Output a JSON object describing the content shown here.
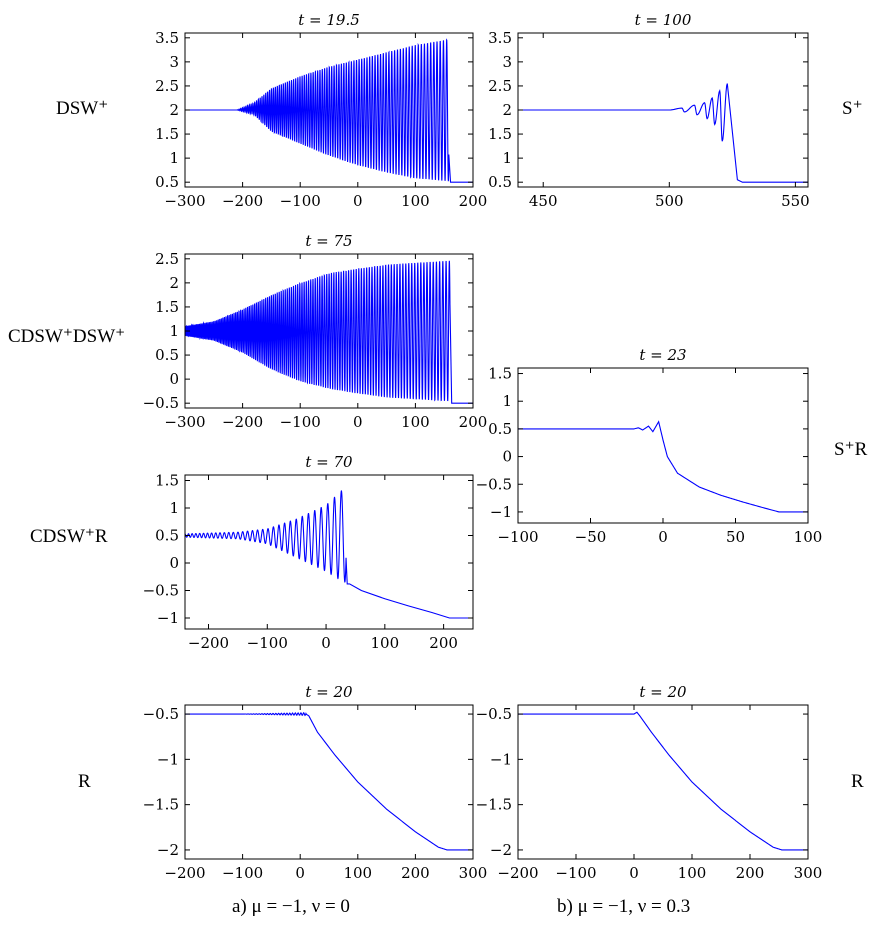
{
  "row_labels": {
    "dsw_plus": "DSW⁺",
    "s_plus": "S⁺",
    "cdsw_dsw": "CDSW⁺DSW⁺",
    "s_plus_r": "S⁺R",
    "cdsw_r": "CDSW⁺R",
    "r_left": "R",
    "r_right": "R"
  },
  "captions": {
    "left": "a) μ = −1, ν = 0",
    "right": "b) μ = −1, ν = 0.3"
  },
  "line_color": "#0000ff",
  "chart_data": [
    {
      "id": "dswplus_a",
      "type": "line",
      "title": "t = 19.5",
      "xlim": [
        -300,
        200
      ],
      "ylim": [
        0.4,
        3.6
      ],
      "xticks": [
        -300,
        -200,
        -100,
        0,
        100,
        200
      ],
      "yticks": [
        0.5,
        1,
        1.5,
        2,
        2.5,
        3,
        3.5
      ],
      "left_level": 2,
      "right_level": 0.5,
      "envelope_upper": [
        [
          -300,
          2.0
        ],
        [
          -210,
          2.0
        ],
        [
          -180,
          2.15
        ],
        [
          -150,
          2.45
        ],
        [
          -100,
          2.7
        ],
        [
          -50,
          2.9
        ],
        [
          0,
          3.05
        ],
        [
          50,
          3.2
        ],
        [
          100,
          3.35
        ],
        [
          158,
          3.47
        ]
      ],
      "envelope_lower": [
        [
          -300,
          2.0
        ],
        [
          -210,
          2.0
        ],
        [
          -180,
          1.9
        ],
        [
          -150,
          1.55
        ],
        [
          -100,
          1.3
        ],
        [
          -50,
          1.05
        ],
        [
          0,
          0.85
        ],
        [
          50,
          0.7
        ],
        [
          100,
          0.58
        ],
        [
          158,
          0.52
        ]
      ],
      "shock_x": 158
    },
    {
      "id": "splus_b",
      "type": "line",
      "title": "t = 100",
      "xlim": [
        440,
        555
      ],
      "ylim": [
        0.4,
        3.6
      ],
      "xticks": [
        450,
        500,
        550
      ],
      "yticks": [
        0.5,
        1,
        1.5,
        2,
        2.5,
        3,
        3.5
      ],
      "left_level": 2,
      "right_level": 0.5,
      "oscillation_peaks": [
        [
          505,
          2.04
        ],
        [
          510,
          2.1
        ],
        [
          514,
          2.15
        ],
        [
          517,
          2.25
        ],
        [
          520,
          2.4
        ],
        [
          523,
          2.55
        ]
      ],
      "oscillation_troughs": [
        [
          506,
          1.96
        ],
        [
          511,
          1.9
        ],
        [
          515,
          1.82
        ],
        [
          518,
          1.7
        ],
        [
          521,
          1.35
        ]
      ],
      "drop_end_x": 527
    },
    {
      "id": "cdsw_dsw_a",
      "type": "line",
      "title": "t = 75",
      "xlim": [
        -300,
        200
      ],
      "ylim": [
        -0.6,
        2.6
      ],
      "xticks": [
        -300,
        -200,
        -100,
        0,
        100,
        200
      ],
      "yticks": [
        -0.5,
        0,
        0.5,
        1,
        1.5,
        2,
        2.5
      ],
      "left_level": 1,
      "right_level": -0.5,
      "envelope_upper": [
        [
          -300,
          1.1
        ],
        [
          -250,
          1.2
        ],
        [
          -200,
          1.45
        ],
        [
          -150,
          1.75
        ],
        [
          -100,
          2.0
        ],
        [
          -50,
          2.2
        ],
        [
          0,
          2.3
        ],
        [
          50,
          2.38
        ],
        [
          100,
          2.42
        ],
        [
          158,
          2.46
        ]
      ],
      "envelope_lower": [
        [
          -300,
          0.9
        ],
        [
          -250,
          0.8
        ],
        [
          -200,
          0.55
        ],
        [
          -150,
          0.2
        ],
        [
          -100,
          -0.05
        ],
        [
          -50,
          -0.2
        ],
        [
          0,
          -0.3
        ],
        [
          50,
          -0.38
        ],
        [
          100,
          -0.42
        ],
        [
          158,
          -0.46
        ]
      ],
      "shock_x": 160
    },
    {
      "id": "splusr_b",
      "type": "line",
      "title": "t = 23",
      "xlim": [
        -100,
        100
      ],
      "ylim": [
        -1.2,
        1.6
      ],
      "xticks": [
        -100,
        -50,
        0,
        50,
        100
      ],
      "yticks": [
        -1,
        -0.5,
        0,
        0.5,
        1,
        1.5
      ],
      "curve": [
        [
          -100,
          0.5
        ],
        [
          -20,
          0.5
        ],
        [
          -17,
          0.52
        ],
        [
          -14,
          0.48
        ],
        [
          -10,
          0.55
        ],
        [
          -7,
          0.45
        ],
        [
          -3,
          0.63
        ],
        [
          0,
          0.3
        ],
        [
          3,
          0.0
        ],
        [
          10,
          -0.3
        ],
        [
          25,
          -0.55
        ],
        [
          40,
          -0.7
        ],
        [
          55,
          -0.82
        ],
        [
          70,
          -0.93
        ],
        [
          80,
          -1.0
        ],
        [
          100,
          -1.0
        ]
      ]
    },
    {
      "id": "cdswr_a",
      "type": "line",
      "title": "t = 70",
      "xlim": [
        -240,
        250
      ],
      "ylim": [
        -1.2,
        1.6
      ],
      "xticks": [
        -200,
        -100,
        0,
        100,
        200
      ],
      "yticks": [
        -1,
        -0.5,
        0,
        0.5,
        1,
        1.5
      ],
      "left_level": 0.5,
      "envelope_upper": [
        [
          -240,
          0.53
        ],
        [
          -150,
          0.56
        ],
        [
          -100,
          0.62
        ],
        [
          -50,
          0.8
        ],
        [
          0,
          1.05
        ],
        [
          20,
          1.25
        ],
        [
          33,
          1.38
        ]
      ],
      "envelope_lower": [
        [
          -240,
          0.47
        ],
        [
          -150,
          0.44
        ],
        [
          -100,
          0.35
        ],
        [
          -50,
          0.1
        ],
        [
          0,
          -0.15
        ],
        [
          20,
          -0.28
        ],
        [
          33,
          -0.35
        ]
      ],
      "shock_x": 34,
      "tail": [
        [
          40,
          -0.38
        ],
        [
          60,
          -0.5
        ],
        [
          100,
          -0.65
        ],
        [
          140,
          -0.78
        ],
        [
          180,
          -0.9
        ],
        [
          210,
          -1.0
        ],
        [
          250,
          -1.0
        ]
      ]
    },
    {
      "id": "r_a",
      "type": "line",
      "title": "t = 20",
      "xlim": [
        -200,
        300
      ],
      "ylim": [
        -2.1,
        -0.4
      ],
      "xticks": [
        -200,
        -100,
        0,
        100,
        200,
        300
      ],
      "yticks": [
        -2,
        -1.5,
        -1,
        -0.5
      ],
      "ripple_range": [
        -100,
        10
      ],
      "ripple_amp": 0.015,
      "curve": [
        [
          -200,
          -0.5
        ],
        [
          10,
          -0.5
        ],
        [
          15,
          -0.52
        ],
        [
          30,
          -0.7
        ],
        [
          60,
          -0.95
        ],
        [
          100,
          -1.25
        ],
        [
          150,
          -1.55
        ],
        [
          200,
          -1.8
        ],
        [
          240,
          -1.97
        ],
        [
          255,
          -2.0
        ],
        [
          300,
          -2.0
        ]
      ]
    },
    {
      "id": "r_b",
      "type": "line",
      "title": "t = 20",
      "xlim": [
        -200,
        300
      ],
      "ylim": [
        -2.1,
        -0.4
      ],
      "xticks": [
        -200,
        -100,
        0,
        100,
        200,
        300
      ],
      "yticks": [
        -2,
        -1.5,
        -1,
        -0.5
      ],
      "curve": [
        [
          -200,
          -0.5
        ],
        [
          0,
          -0.5
        ],
        [
          5,
          -0.48
        ],
        [
          10,
          -0.52
        ],
        [
          30,
          -0.7
        ],
        [
          60,
          -0.95
        ],
        [
          100,
          -1.25
        ],
        [
          150,
          -1.55
        ],
        [
          200,
          -1.8
        ],
        [
          240,
          -1.97
        ],
        [
          255,
          -2.0
        ],
        [
          300,
          -2.0
        ]
      ]
    }
  ]
}
